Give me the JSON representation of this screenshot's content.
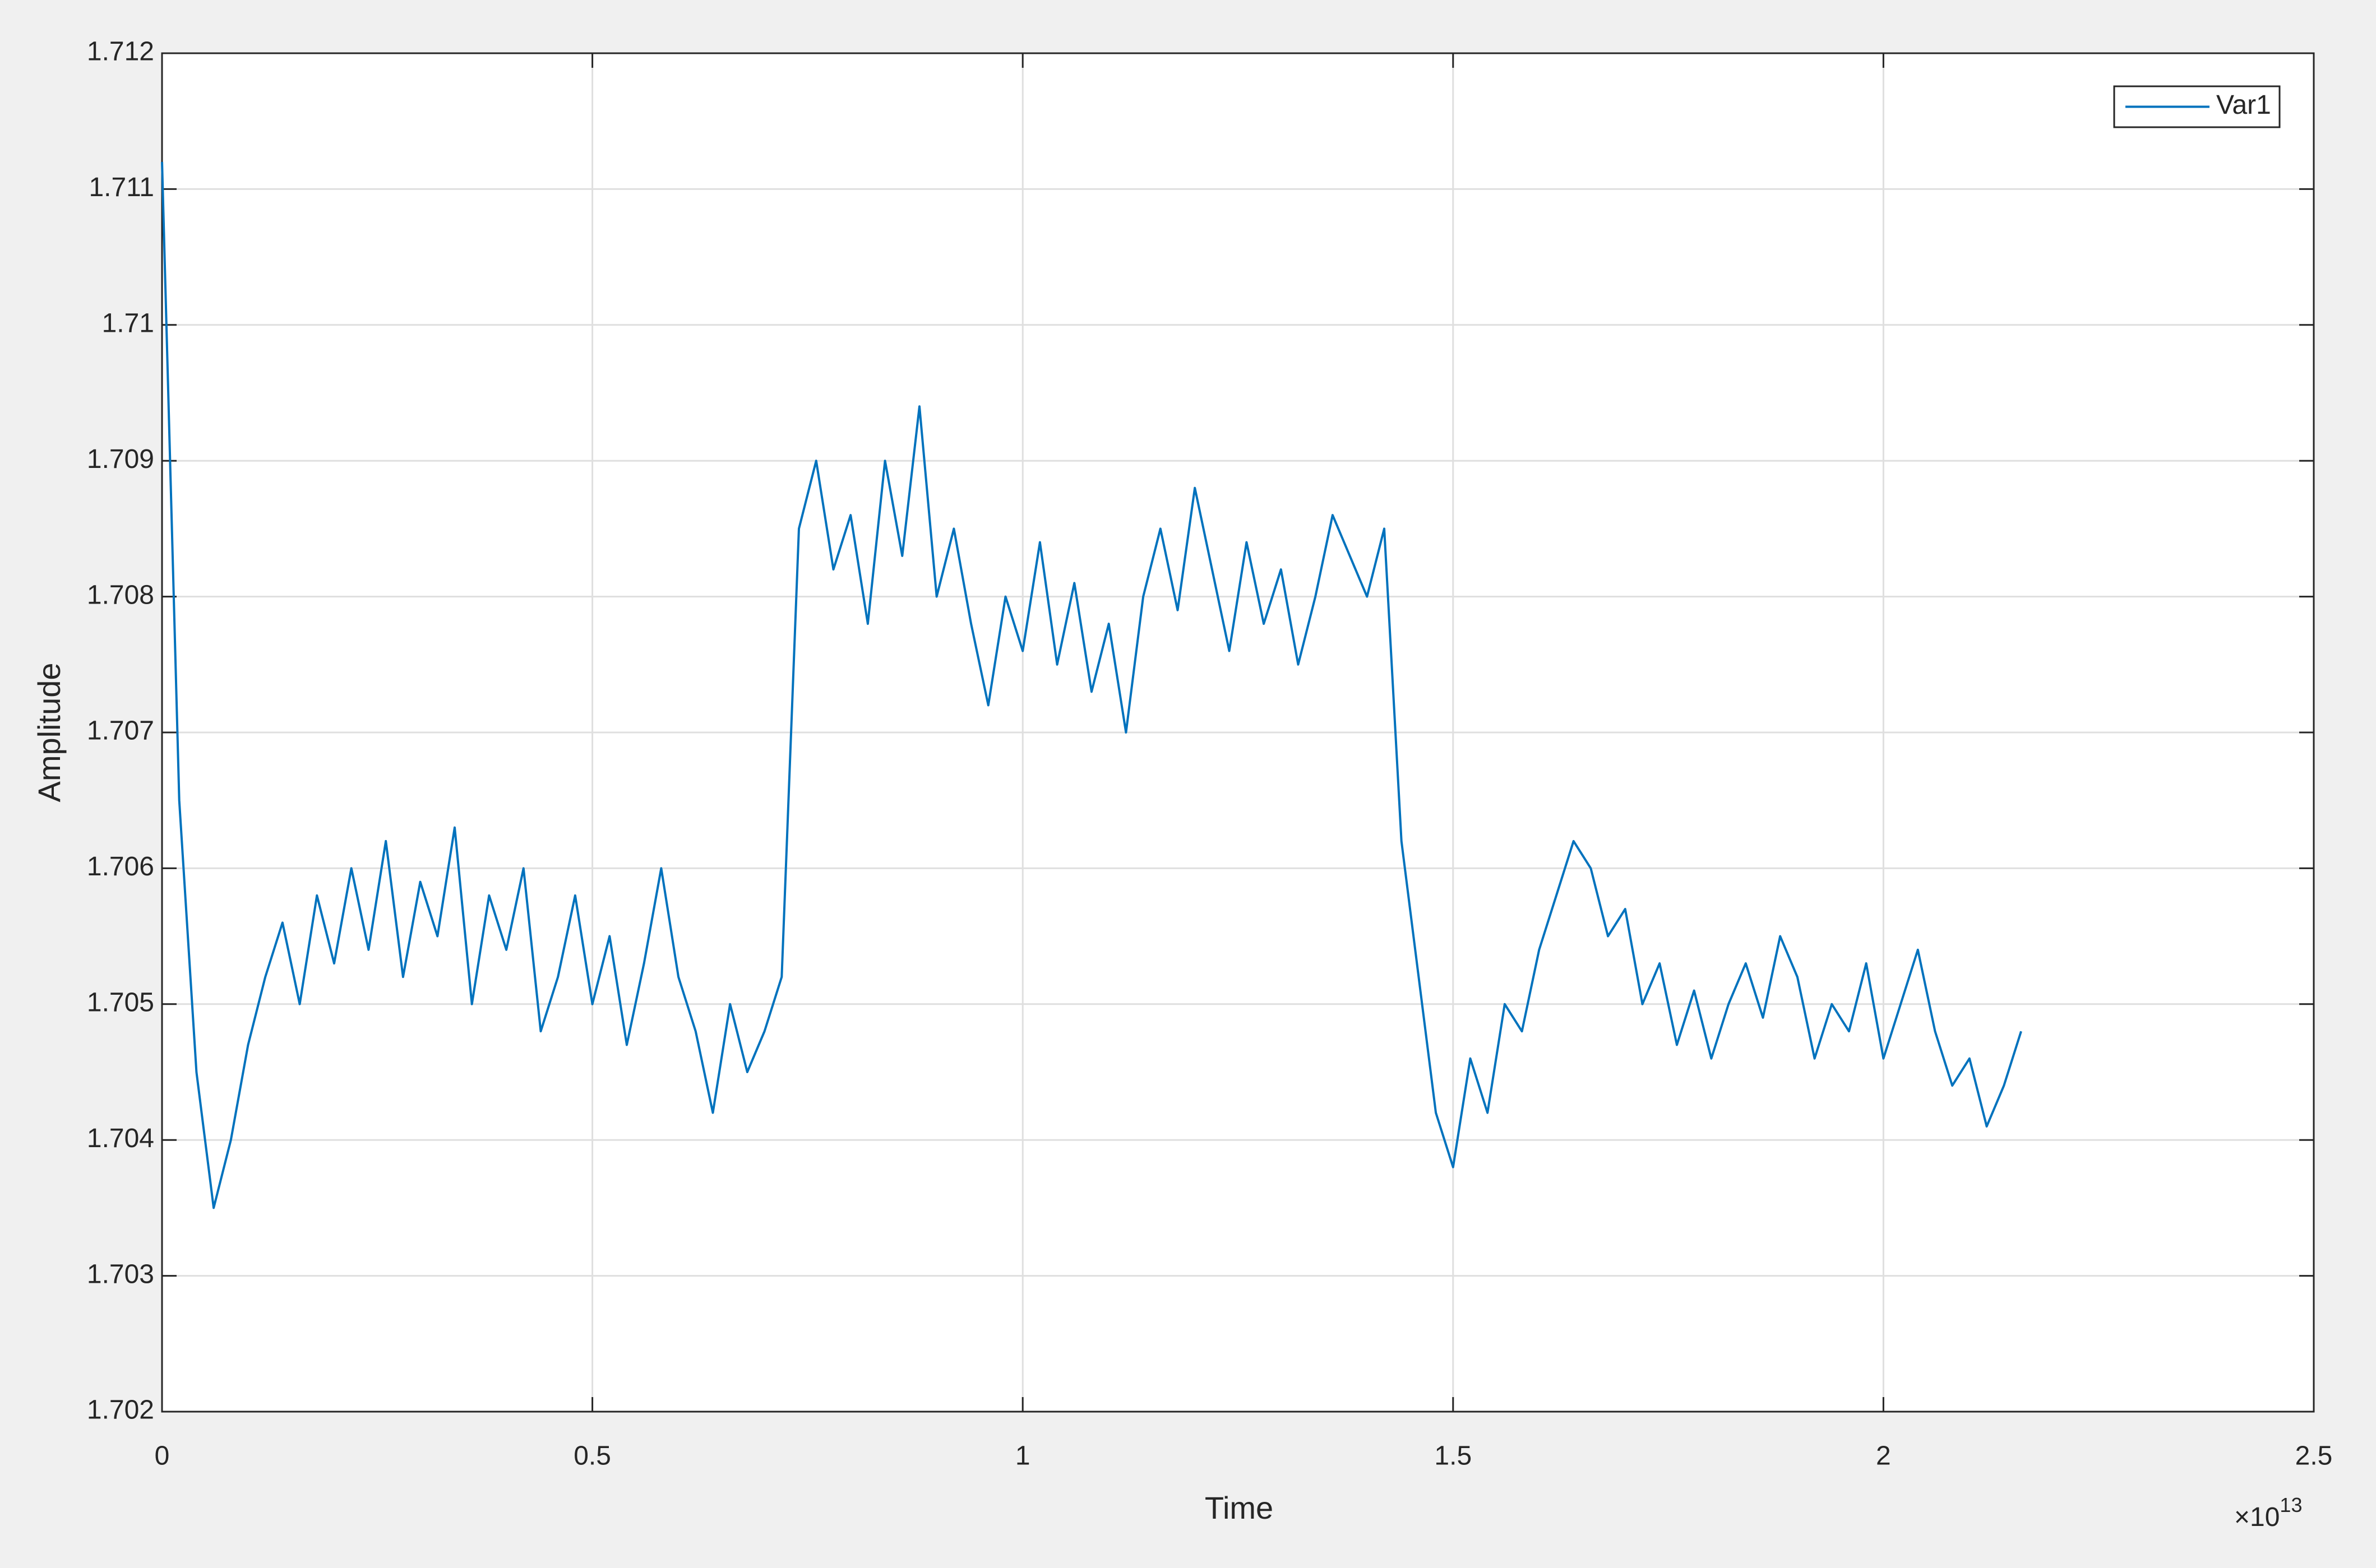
{
  "chart_data": {
    "type": "line",
    "x_label": "Time",
    "y_label": "Amplitude",
    "x_multiplier": {
      "base": "×10",
      "exponent": "13"
    },
    "x": [
      0,
      0.02,
      0.04,
      0.06,
      0.08,
      0.1,
      0.12,
      0.14,
      0.16,
      0.18,
      0.2,
      0.22,
      0.24,
      0.26,
      0.28,
      0.3,
      0.32,
      0.34,
      0.36,
      0.38,
      0.4,
      0.42,
      0.44,
      0.46,
      0.48,
      0.5,
      0.52,
      0.54,
      0.56,
      0.58,
      0.6,
      0.62,
      0.64,
      0.66,
      0.68,
      0.7,
      0.72,
      0.74,
      0.76,
      0.78,
      0.8,
      0.82,
      0.84,
      0.86,
      0.88,
      0.9,
      0.92,
      0.94,
      0.96,
      0.98,
      1,
      1.02,
      1.04,
      1.06,
      1.08,
      1.1,
      1.12,
      1.14,
      1.16,
      1.18,
      1.2,
      1.22,
      1.24,
      1.26,
      1.28,
      1.3,
      1.32,
      1.34,
      1.36,
      1.38,
      1.4,
      1.42,
      1.44,
      1.46,
      1.48,
      1.5,
      1.52,
      1.54,
      1.56,
      1.58,
      1.6,
      1.62,
      1.64,
      1.66,
      1.68,
      1.7,
      1.72,
      1.74,
      1.76,
      1.78,
      1.8,
      1.82,
      1.84,
      1.86,
      1.88,
      1.9,
      1.92,
      1.94,
      1.96,
      1.98,
      2,
      2.02,
      2.04,
      2.06,
      2.08,
      2.1,
      2.12,
      2.14,
      2.16
    ],
    "series": [
      {
        "name": "Var1",
        "color": "#0072bd",
        "values": [
          1.7112,
          1.7065,
          1.7045,
          1.7035,
          1.704,
          1.7047,
          1.7052,
          1.7056,
          1.705,
          1.7058,
          1.7053,
          1.706,
          1.7054,
          1.7062,
          1.7052,
          1.7059,
          1.7055,
          1.7063,
          1.705,
          1.7058,
          1.7054,
          1.706,
          1.7048,
          1.7052,
          1.7058,
          1.705,
          1.7055,
          1.7047,
          1.7053,
          1.706,
          1.7052,
          1.7048,
          1.7042,
          1.705,
          1.7045,
          1.7048,
          1.7052,
          1.7085,
          1.709,
          1.7082,
          1.7086,
          1.7078,
          1.709,
          1.7083,
          1.7094,
          1.708,
          1.7085,
          1.7078,
          1.7072,
          1.708,
          1.7076,
          1.7084,
          1.7075,
          1.7081,
          1.7073,
          1.7078,
          1.707,
          1.708,
          1.7085,
          1.7079,
          1.7088,
          1.7082,
          1.7076,
          1.7084,
          1.7078,
          1.7082,
          1.7075,
          1.708,
          1.7086,
          1.7083,
          1.708,
          1.7085,
          1.7062,
          1.7052,
          1.7042,
          1.7038,
          1.7046,
          1.7042,
          1.705,
          1.7048,
          1.7054,
          1.7058,
          1.7062,
          1.706,
          1.7055,
          1.7057,
          1.705,
          1.7053,
          1.7047,
          1.7051,
          1.7046,
          1.705,
          1.7053,
          1.7049,
          1.7055,
          1.7052,
          1.7046,
          1.705,
          1.7048,
          1.7053,
          1.7046,
          1.705,
          1.7054,
          1.7048,
          1.7044,
          1.7046,
          1.7041,
          1.7044,
          1.7048
        ]
      }
    ],
    "xlim": [
      0,
      2.5
    ],
    "xticks": [
      0,
      0.5,
      1,
      1.5,
      2,
      2.5
    ],
    "ylim": [
      1.702,
      1.712
    ],
    "yticks": [
      1.702,
      1.703,
      1.704,
      1.705,
      1.706,
      1.707,
      1.708,
      1.709,
      1.71,
      1.711,
      1.712
    ],
    "grid": true,
    "legend": "upper-right"
  }
}
